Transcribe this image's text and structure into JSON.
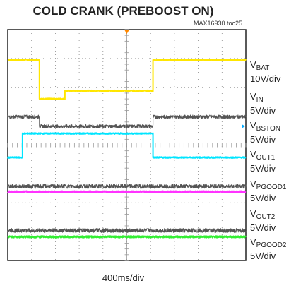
{
  "title": "COLD CRANK (PREBOOST ON)",
  "toc_id": "MAX16930 toc25",
  "timebase": "400ms/div",
  "channels": [
    {
      "main": "V",
      "sub": "BAT",
      "scale": "10V/div"
    },
    {
      "main": "V",
      "sub": "IN",
      "scale": "5V/div"
    },
    {
      "main": "V",
      "sub": "BSTON",
      "scale": "5V/div"
    },
    {
      "main": "V",
      "sub": "OUT1",
      "scale": "5V/div"
    },
    {
      "main": "V",
      "sub": "PGOOD1",
      "scale": "5V/div"
    },
    {
      "main": "V",
      "sub": "OUT2",
      "scale": "5V/div"
    },
    {
      "main": "V",
      "sub": "PGOOD2",
      "scale": "5V/div"
    }
  ],
  "chart_data": {
    "type": "line",
    "title": "COLD CRANK (PREBOOST ON)",
    "xlabel": "400ms/div",
    "ylabel": "",
    "grid": true,
    "x_divisions": 10,
    "y_divisions": 8,
    "xlim": [
      0,
      10
    ],
    "ylim": [
      0,
      8
    ],
    "series": [
      {
        "name": "VBAT",
        "color": "#ffe600",
        "noise": 0.02,
        "points": [
          [
            0,
            6.95
          ],
          [
            1.33,
            6.95
          ],
          [
            1.33,
            5.6
          ],
          [
            2.4,
            5.6
          ],
          [
            2.4,
            5.88
          ],
          [
            6.1,
            5.88
          ],
          [
            6.1,
            6.95
          ],
          [
            10,
            6.95
          ]
        ]
      },
      {
        "name": "VIN",
        "color": "#555555",
        "noise": 0.06,
        "points": [
          [
            0,
            4.98
          ],
          [
            1.33,
            4.98
          ],
          [
            1.33,
            4.65
          ],
          [
            6.1,
            4.65
          ],
          [
            6.1,
            4.98
          ],
          [
            10,
            4.98
          ]
        ]
      },
      {
        "name": "VBSTON",
        "color": "#00e5ff",
        "noise": 0.02,
        "points": [
          [
            0,
            3.57
          ],
          [
            0.62,
            3.57
          ],
          [
            0.62,
            4.4
          ],
          [
            6.1,
            4.4
          ],
          [
            6.1,
            3.57
          ],
          [
            10,
            3.57
          ]
        ]
      },
      {
        "name": "VOUT1",
        "color": "#555555",
        "noise": 0.07,
        "points": [
          [
            0,
            2.57
          ],
          [
            10,
            2.57
          ]
        ]
      },
      {
        "name": "VPGOOD1",
        "color": "#ff33ff",
        "noise": 0.03,
        "points": [
          [
            0,
            2.38
          ],
          [
            10,
            2.38
          ]
        ]
      },
      {
        "name": "VOUT2",
        "color": "#555555",
        "noise": 0.07,
        "points": [
          [
            0,
            1.04
          ],
          [
            10,
            1.04
          ]
        ]
      },
      {
        "name": "VPGOOD2",
        "color": "#33ee33",
        "noise": 0.03,
        "points": [
          [
            0,
            0.82
          ],
          [
            10,
            0.82
          ]
        ]
      }
    ]
  }
}
